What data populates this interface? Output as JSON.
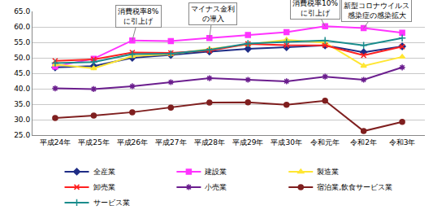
{
  "chart_data": {
    "type": "line",
    "categories": [
      "平成24年",
      "平成25年",
      "平成26年",
      "平成27年",
      "平成28年",
      "平成29年",
      "平成30年",
      "令和元年",
      "令和2年",
      "令和3年"
    ],
    "series": [
      {
        "name": "全産業",
        "color": "#1f2d86",
        "marker": "diamond",
        "values": [
          46.9,
          47.3,
          50.0,
          50.9,
          52.0,
          52.9,
          53.4,
          54.0,
          51.8,
          53.7
        ]
      },
      {
        "name": "建設業",
        "color": "#ff33ff",
        "marker": "square",
        "values": [
          47.2,
          49.7,
          55.6,
          55.4,
          56.4,
          57.4,
          58.3,
          60.2,
          59.6,
          58.1
        ]
      },
      {
        "name": "製造業",
        "color": "#ffe633",
        "marker": "triangle",
        "values": [
          47.8,
          46.6,
          50.5,
          51.2,
          52.8,
          54.3,
          55.8,
          54.9,
          47.4,
          50.3
        ]
      },
      {
        "name": "卸売業",
        "color": "#ff2020",
        "marker": "x",
        "values": [
          49.0,
          49.5,
          51.7,
          51.6,
          52.3,
          54.5,
          54.1,
          54.0,
          50.8,
          53.6
        ]
      },
      {
        "name": "小売業",
        "color": "#6b1e8e",
        "marker": "asterisk",
        "values": [
          40.1,
          39.9,
          40.8,
          42.1,
          43.4,
          42.9,
          42.4,
          43.9,
          42.9,
          46.9
        ]
      },
      {
        "name": "宿泊業,飲食サービス業",
        "color": "#7f1f1f",
        "marker": "circle",
        "values": [
          30.5,
          31.3,
          32.4,
          33.9,
          35.5,
          35.6,
          34.8,
          36.1,
          26.3,
          29.3
        ]
      },
      {
        "name": "サービス業",
        "color": "#1a8c8c",
        "marker": "plus",
        "values": [
          48.3,
          48.6,
          51.2,
          51.3,
          52.6,
          54.6,
          55.1,
          55.6,
          54.0,
          56.4
        ]
      }
    ],
    "ylim": [
      25,
      65
    ],
    "yticks": [
      {
        "value": 25,
        "label": "25.0"
      },
      {
        "value": 30,
        "label": "30.0"
      },
      {
        "value": 35,
        "label": "35.0"
      },
      {
        "value": 40,
        "label": "40.0"
      },
      {
        "value": 45,
        "label": "45.0"
      },
      {
        "value": 50,
        "label": "50.0"
      },
      {
        "value": 55,
        "label": "55.0"
      },
      {
        "value": 60,
        "label": "60.0"
      },
      {
        "value": 65,
        "label": "65.0"
      }
    ],
    "grid": true,
    "legend": "bottom",
    "annotations": [
      {
        "text": "消費税率8%\nに引上げ",
        "x": "平成26年",
        "y": 55.6
      },
      {
        "text": "マイナス金利\nの導入",
        "x": "平成28年",
        "y": 56.4
      },
      {
        "text": "消費税率10%\nに引上げ",
        "x": "令和元年",
        "y": 60.2
      },
      {
        "text": "新型コロナウイルス\n感染症の感染拡大",
        "x": "令和2年",
        "y": 59.6
      }
    ]
  }
}
